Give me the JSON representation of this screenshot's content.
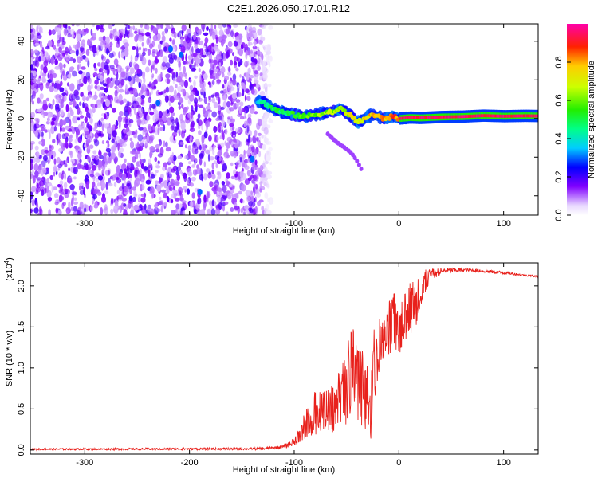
{
  "title": "C2E1.2026.050.17.01.R12",
  "chart_data": [
    {
      "type": "heatmap",
      "name": "spectrogram",
      "xlabel": "Height of straight line (km)",
      "ylabel": "Frequency (Hz)",
      "xlim": [
        -352,
        133
      ],
      "ylim": [
        -50,
        49
      ],
      "xticks": [
        -300,
        -200,
        -100,
        0,
        100
      ],
      "yticks": [
        -40,
        -20,
        0,
        20,
        40
      ],
      "ridge": {
        "x": [
          -135,
          -128,
          -120,
          -110,
          -100,
          -90,
          -80,
          -70,
          -60,
          -55,
          -50,
          -45,
          -40,
          -35,
          -30,
          -25,
          -20,
          -15,
          -10,
          -5,
          0,
          10,
          20,
          40,
          60,
          80,
          100,
          120,
          133
        ],
        "y": [
          9,
          8,
          5,
          3,
          2,
          1,
          2,
          3,
          4,
          5,
          3,
          1,
          -2,
          -1,
          1,
          2,
          1,
          0,
          0.5,
          1,
          0,
          0.5,
          0.3,
          0.8,
          1,
          1.5,
          1.2,
          1.4,
          1.3
        ]
      },
      "branch": {
        "x": [
          -68,
          -60,
          -52,
          -45,
          -40,
          -36
        ],
        "y": [
          -8,
          -12,
          -15,
          -18,
          -22,
          -26
        ]
      },
      "noise_extent_x": [
        -352,
        -122
      ]
    },
    {
      "type": "colorbar",
      "name": "colorbar",
      "label": "Normalized spectral amplitude",
      "range": [
        0,
        1
      ],
      "ticks": [
        "0.0",
        "0.2",
        "0.4",
        "0.6",
        "0.8"
      ],
      "tick_values": [
        0,
        0.2,
        0.4,
        0.6,
        0.8
      ]
    },
    {
      "type": "line",
      "name": "snr",
      "xlabel": "Height of straight line (km)",
      "ylabel": "SNR (10 * v/v)",
      "y_multiplier": "(x10",
      "y_multiplier_exp": "4",
      "y_multiplier_close": ")",
      "xlim": [
        -352,
        133
      ],
      "ylim": [
        -0.05,
        2.28
      ],
      "xticks": [
        -300,
        -200,
        -100,
        0,
        100
      ],
      "yticks": [
        "0.0",
        "0.5",
        "1.0",
        "1.5",
        "2.0"
      ],
      "ytick_values": [
        0,
        0.5,
        1,
        1.5,
        2
      ],
      "color": "#e8211c",
      "envelope": {
        "x": [
          -352,
          -130,
          -110,
          -100,
          -95,
          -90,
          -85,
          -80,
          -75,
          -70,
          -65,
          -60,
          -55,
          -50,
          -45,
          -40,
          -35,
          -30,
          -27,
          -25,
          -20,
          -15,
          -10,
          -5,
          0,
          5,
          10,
          15,
          20,
          25,
          30,
          40,
          50,
          60,
          70,
          80,
          90,
          100,
          110,
          120,
          133
        ],
        "low": [
          0.0,
          0.0,
          0.02,
          0.05,
          0.08,
          0.12,
          0.15,
          0.18,
          0.2,
          0.22,
          0.2,
          0.25,
          0.3,
          0.2,
          0.3,
          0.35,
          0.25,
          0.2,
          0.1,
          0.35,
          0.9,
          1.1,
          1.15,
          1.2,
          1.15,
          1.3,
          1.35,
          1.4,
          1.55,
          1.9,
          2.05,
          2.14,
          2.16,
          2.17,
          2.17,
          2.16,
          2.15,
          2.14,
          2.13,
          2.12,
          2.1
        ],
        "high": [
          0.02,
          0.03,
          0.06,
          0.15,
          0.3,
          0.45,
          0.6,
          0.75,
          0.7,
          0.72,
          0.8,
          0.85,
          1.05,
          1.25,
          1.55,
          1.45,
          1.25,
          1.05,
          0.7,
          1.45,
          1.55,
          1.7,
          1.9,
          1.95,
          1.75,
          1.9,
          2.05,
          2.2,
          2.25,
          2.22,
          2.21,
          2.22,
          2.22,
          2.22,
          2.21,
          2.2,
          2.19,
          2.18,
          2.16,
          2.14,
          2.13
        ]
      }
    }
  ]
}
